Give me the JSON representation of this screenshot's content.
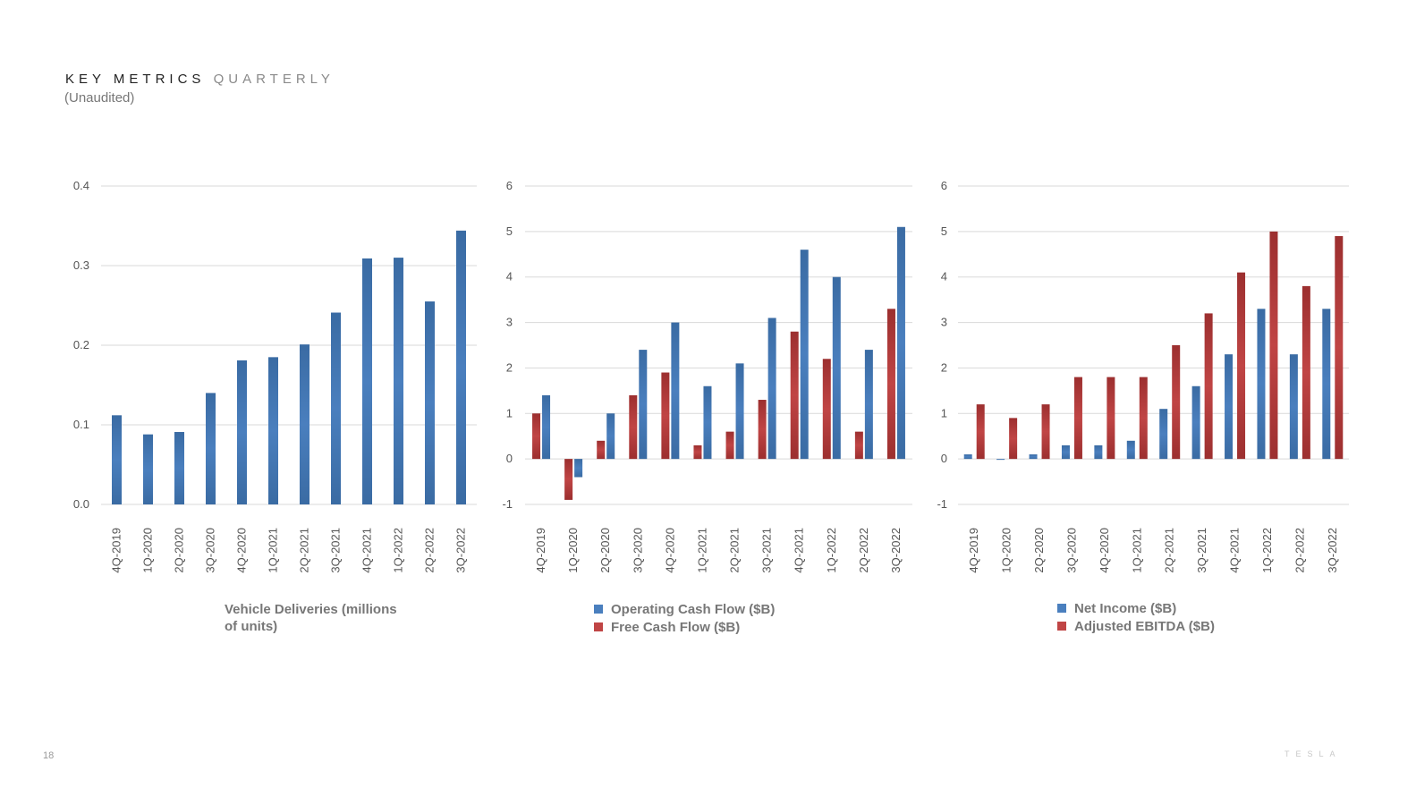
{
  "header": {
    "title_main": "KEY METRICS",
    "title_accent": "QUARTERLY",
    "subtitle": "(Unaudited)"
  },
  "footer": {
    "page_number": "18",
    "logo": "TESLA"
  },
  "colors": {
    "blue": "#3a6ba3",
    "blue_light": "#4a7fbe",
    "red": "#9c2f2f",
    "red_light": "#c04545",
    "grid": "#d9d9d9"
  },
  "chart_data": [
    {
      "type": "bar",
      "title": "Vehicle Deliveries (millions of units)",
      "legend_lines": [
        "Vehicle Deliveries (millions",
        "of units)"
      ],
      "categories": [
        "4Q-2019",
        "1Q-2020",
        "2Q-2020",
        "3Q-2020",
        "4Q-2020",
        "1Q-2021",
        "2Q-2021",
        "3Q-2021",
        "4Q-2021",
        "1Q-2022",
        "2Q-2022",
        "3Q-2022"
      ],
      "series": [
        {
          "name": "Vehicle Deliveries (millions of units)",
          "color": "blue",
          "values": [
            0.112,
            0.088,
            0.091,
            0.14,
            0.181,
            0.185,
            0.201,
            0.241,
            0.309,
            0.31,
            0.255,
            0.344
          ]
        }
      ],
      "ylim": [
        0,
        0.4
      ],
      "yticks": [
        "0.4",
        "0.3",
        "0.2",
        "0.1",
        "0.0"
      ],
      "ytick_values": [
        0.4,
        0.3,
        0.2,
        0.1,
        0.0
      ],
      "show_legend_markers": false
    },
    {
      "type": "bar",
      "title": "",
      "categories": [
        "4Q-2019",
        "1Q-2020",
        "2Q-2020",
        "3Q-2020",
        "4Q-2020",
        "1Q-2021",
        "2Q-2021",
        "3Q-2021",
        "4Q-2021",
        "1Q-2022",
        "2Q-2022",
        "3Q-2022"
      ],
      "series": [
        {
          "name": "Free Cash Flow ($B)",
          "color": "red",
          "values": [
            1.0,
            -0.9,
            0.4,
            1.4,
            1.9,
            0.3,
            0.6,
            1.3,
            2.8,
            2.2,
            0.6,
            3.3
          ]
        },
        {
          "name": "Operating Cash Flow ($B)",
          "color": "blue",
          "values": [
            1.4,
            -0.4,
            1.0,
            2.4,
            3.0,
            1.6,
            2.1,
            3.1,
            4.6,
            4.0,
            2.4,
            5.1
          ]
        }
      ],
      "legend_order": [
        "Operating Cash Flow ($B)",
        "Free Cash Flow ($B)"
      ],
      "legend_colors": [
        "blue",
        "red"
      ],
      "ylim": [
        -1,
        6
      ],
      "yticks": [
        "6",
        "5",
        "4",
        "3",
        "2",
        "1",
        "0",
        "-1"
      ],
      "ytick_values": [
        6,
        5,
        4,
        3,
        2,
        1,
        0,
        -1
      ],
      "show_legend_markers": true
    },
    {
      "type": "bar",
      "title": "",
      "categories": [
        "4Q-2019",
        "1Q-2020",
        "2Q-2020",
        "3Q-2020",
        "4Q-2020",
        "1Q-2021",
        "2Q-2021",
        "3Q-2021",
        "4Q-2021",
        "1Q-2022",
        "2Q-2022",
        "3Q-2022"
      ],
      "series": [
        {
          "name": "Net Income ($B)",
          "color": "blue",
          "values": [
            0.1,
            0.0,
            0.1,
            0.3,
            0.3,
            0.4,
            1.1,
            1.6,
            2.3,
            3.3,
            2.3,
            3.3
          ]
        },
        {
          "name": "Adjusted EBITDA ($B)",
          "color": "red",
          "values": [
            1.2,
            0.9,
            1.2,
            1.8,
            1.8,
            1.8,
            2.5,
            3.2,
            4.1,
            5.0,
            3.8,
            4.9
          ]
        }
      ],
      "legend_order": [
        "Net Income ($B)",
        "Adjusted EBITDA ($B)"
      ],
      "legend_colors": [
        "blue",
        "red"
      ],
      "ylim": [
        -1,
        6
      ],
      "yticks": [
        "6",
        "5",
        "4",
        "3",
        "2",
        "1",
        "0",
        "-1"
      ],
      "ytick_values": [
        6,
        5,
        4,
        3,
        2,
        1,
        0,
        -1
      ],
      "show_legend_markers": true
    }
  ]
}
